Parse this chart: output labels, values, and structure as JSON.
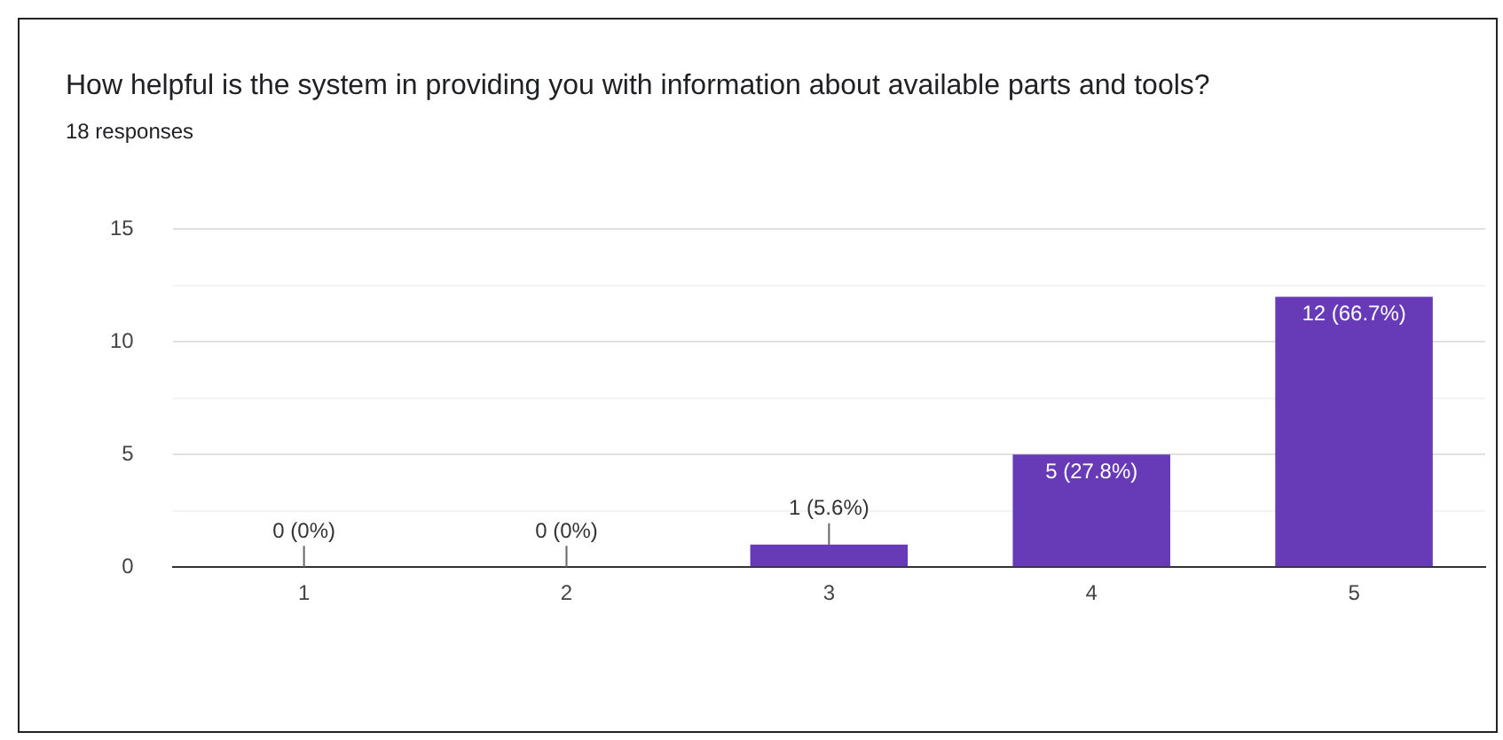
{
  "chart_data": {
    "type": "bar",
    "title": "How helpful is the system in providing you with information about available parts and tools?",
    "subtitle": "18 responses",
    "categories": [
      "1",
      "2",
      "3",
      "4",
      "5"
    ],
    "values": [
      0,
      0,
      1,
      5,
      12
    ],
    "value_labels": [
      "0 (0%)",
      "0 (0%)",
      "1 (5.6%)",
      "5 (27.8%)",
      "12 (66.7%)"
    ],
    "color": "#673ab7",
    "ylim": [
      0,
      15
    ],
    "yticks": [
      0,
      {
        "value": 2.5,
        "label": null
      },
      5,
      {
        "value": 7.5,
        "label": null
      },
      10,
      {
        "value": 12.5,
        "label": null
      },
      15
    ],
    "grid": "y",
    "legend": false
  }
}
